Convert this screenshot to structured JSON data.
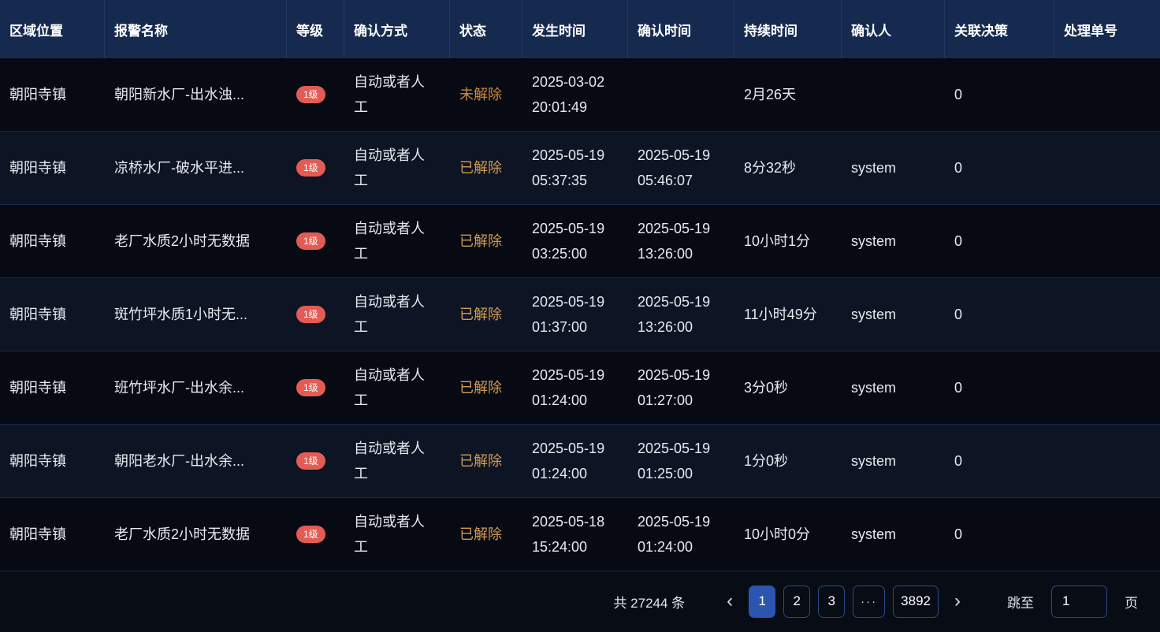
{
  "table": {
    "columns": [
      {
        "label": "区域位置"
      },
      {
        "label": "报警名称"
      },
      {
        "label": "等级"
      },
      {
        "label": "确认方式"
      },
      {
        "label": "状态"
      },
      {
        "label": "发生时间"
      },
      {
        "label": "确认时间"
      },
      {
        "label": "持续时间"
      },
      {
        "label": "确认人"
      },
      {
        "label": "关联决策"
      },
      {
        "label": "处理单号"
      }
    ],
    "rows": [
      {
        "area": "朝阳寺镇",
        "name": "朝阳新水厂-出水浊...",
        "level": "1级",
        "method": "自动或者人工",
        "status": "未解除",
        "occur_date": "2025-03-02",
        "occur_time": "20:01:49",
        "ack_date": "",
        "ack_time": "",
        "duration": "2月26天",
        "acker": "",
        "decision": "0",
        "order": ""
      },
      {
        "area": "朝阳寺镇",
        "name": "凉桥水厂-破水平进...",
        "level": "1级",
        "method": "自动或者人工",
        "status": "已解除",
        "occur_date": "2025-05-19",
        "occur_time": "05:37:35",
        "ack_date": "2025-05-19",
        "ack_time": "05:46:07",
        "duration": "8分32秒",
        "acker": "system",
        "decision": "0",
        "order": ""
      },
      {
        "area": "朝阳寺镇",
        "name": "老厂水质2小时无数据",
        "level": "1级",
        "method": "自动或者人工",
        "status": "已解除",
        "occur_date": "2025-05-19",
        "occur_time": "03:25:00",
        "ack_date": "2025-05-19",
        "ack_time": "13:26:00",
        "duration": "10小时1分",
        "acker": "system",
        "decision": "0",
        "order": ""
      },
      {
        "area": "朝阳寺镇",
        "name": "斑竹坪水质1小时无...",
        "level": "1级",
        "method": "自动或者人工",
        "status": "已解除",
        "occur_date": "2025-05-19",
        "occur_time": "01:37:00",
        "ack_date": "2025-05-19",
        "ack_time": "13:26:00",
        "duration": "11小时49分",
        "acker": "system",
        "decision": "0",
        "order": ""
      },
      {
        "area": "朝阳寺镇",
        "name": "班竹坪水厂-出水余...",
        "level": "1级",
        "method": "自动或者人工",
        "status": "已解除",
        "occur_date": "2025-05-19",
        "occur_time": "01:24:00",
        "ack_date": "2025-05-19",
        "ack_time": "01:27:00",
        "duration": "3分0秒",
        "acker": "system",
        "decision": "0",
        "order": ""
      },
      {
        "area": "朝阳寺镇",
        "name": "朝阳老水厂-出水余...",
        "level": "1级",
        "method": "自动或者人工",
        "status": "已解除",
        "occur_date": "2025-05-19",
        "occur_time": "01:24:00",
        "ack_date": "2025-05-19",
        "ack_time": "01:25:00",
        "duration": "1分0秒",
        "acker": "system",
        "decision": "0",
        "order": ""
      },
      {
        "area": "朝阳寺镇",
        "name": "老厂水质2小时无数据",
        "level": "1级",
        "method": "自动或者人工",
        "status": "已解除",
        "occur_date": "2025-05-18",
        "occur_time": "15:24:00",
        "ack_date": "2025-05-19",
        "ack_time": "01:24:00",
        "duration": "10小时0分",
        "acker": "system",
        "decision": "0",
        "order": ""
      }
    ]
  },
  "pagination": {
    "total_label": "共 27244 条",
    "prev_icon": "‹",
    "next_icon": "›",
    "pages": [
      {
        "label": "1",
        "active": true
      },
      {
        "label": "2",
        "active": false
      },
      {
        "label": "3",
        "active": false
      }
    ],
    "ellipsis": "···",
    "last_page": "3892",
    "jump_label": "跳至",
    "jump_value": "1",
    "page_unit": "页"
  },
  "colors": {
    "header_bg": "#152a4e",
    "row_bg_odd": "#070a13",
    "row_bg_even": "#0d1424",
    "row_divider": "#18274a",
    "header_divider": "#23395f",
    "badge_red": "#e35c54",
    "status_resolved_amber": "#d29c52",
    "status_unresolved_amber": "#cd8a3c",
    "accent_blue": "#2b55ae",
    "button_border_blue": "#2b4a85",
    "text_primary": "#e8eaef"
  }
}
